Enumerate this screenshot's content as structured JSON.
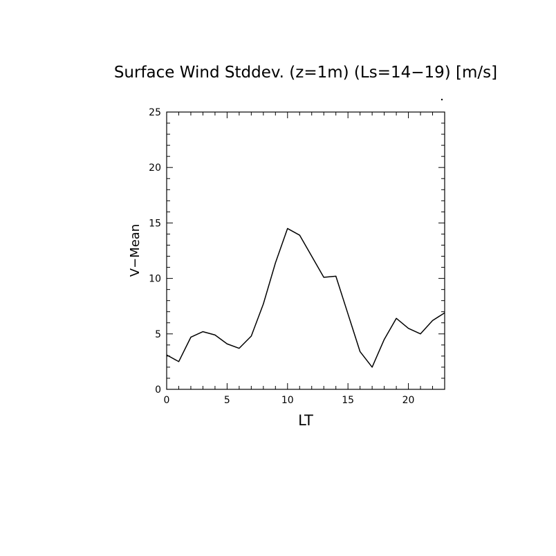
{
  "chart_data": {
    "type": "line",
    "title": "Surface Wind Stddev. (z=1m) (Ls=14−19) [m/s]",
    "xlabel": "LT",
    "ylabel": "V−Mean",
    "xlim": [
      0,
      23
    ],
    "ylim": [
      0,
      25
    ],
    "xticks": [
      0,
      5,
      10,
      15,
      20
    ],
    "yticks": [
      0,
      5,
      10,
      15,
      20,
      25
    ],
    "grid": false,
    "series": [
      {
        "x": [
          0,
          1,
          2,
          3,
          4,
          5,
          6,
          7,
          8,
          9,
          10,
          11,
          12,
          13,
          14,
          15,
          16,
          17,
          18,
          19,
          20,
          21,
          22,
          23
        ],
        "values": [
          3.1,
          2.5,
          4.7,
          5.2,
          4.9,
          4.1,
          3.7,
          4.8,
          7.7,
          11.4,
          14.5,
          13.9,
          12.0,
          10.1,
          10.2,
          6.8,
          3.4,
          2.0,
          4.5,
          6.4,
          5.5,
          5.0,
          6.2,
          6.9
        ]
      }
    ]
  }
}
